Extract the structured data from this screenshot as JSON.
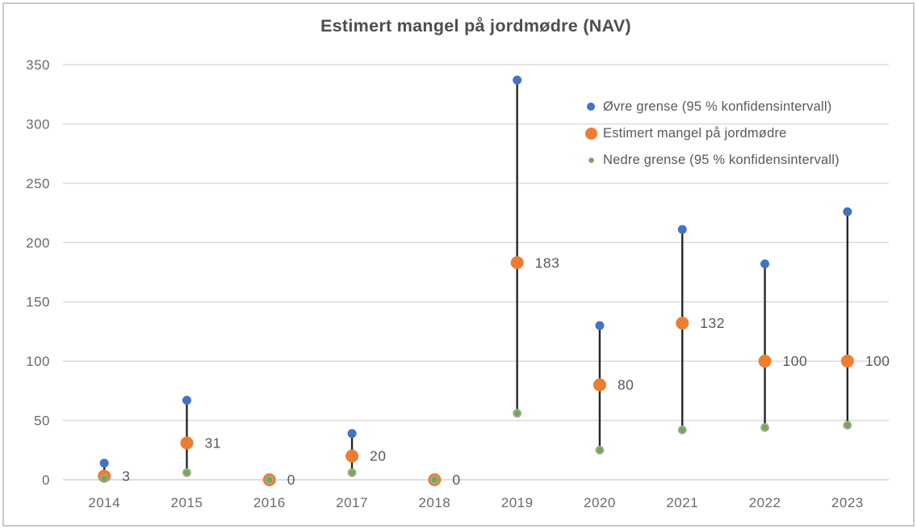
{
  "chart_data": {
    "type": "scatter",
    "title": "Estimert mangel på jordmødre (NAV)",
    "xlabel": "",
    "ylabel": "",
    "categories": [
      "2014",
      "2015",
      "2016",
      "2017",
      "2018",
      "2019",
      "2020",
      "2021",
      "2022",
      "2023"
    ],
    "series": [
      {
        "name": "Øvre grense (95 % konfidensintervall)",
        "role": "upper",
        "color": "#4472C4",
        "marker_size": 11,
        "legend_marker_size": 10,
        "values": [
          14,
          67,
          0,
          39,
          0,
          337,
          130,
          211,
          182,
          226
        ]
      },
      {
        "name": "Estimert mangel på jordmødre",
        "role": "estimate",
        "color": "#ED7D31",
        "marker_size": 16,
        "legend_marker_size": 15,
        "values": [
          3,
          31,
          0,
          20,
          0,
          183,
          80,
          132,
          100,
          100
        ],
        "data_labels": [
          "3",
          "31",
          "0",
          "20",
          "0",
          "183",
          "80",
          "132",
          "100",
          "100"
        ]
      },
      {
        "name": "Nedre grense (95 % konfidensintervall)",
        "role": "lower",
        "color": "#70AD47",
        "marker_outline": "#A6A6A6",
        "marker_size": 9,
        "legend_marker_size": 8,
        "values": [
          1,
          6,
          0,
          6,
          0,
          56,
          25,
          42,
          44,
          46
        ]
      }
    ],
    "ylim": [
      0,
      350
    ],
    "y_ticks": [
      "0",
      "50",
      "100",
      "150",
      "200",
      "250",
      "300",
      "350"
    ],
    "grid": true,
    "error_bars": true,
    "legend_position": "inside-top-right",
    "colors": {
      "error_bar": "#262626",
      "gridline": "#D9D9D9",
      "axis_line": "#D2D2D2",
      "axis_text": "#6a6a6a",
      "title_text": "#4d4d4d",
      "data_label_text": "#595959",
      "frame_border": "#c9c9c9",
      "background": "#FFFFFF"
    }
  }
}
